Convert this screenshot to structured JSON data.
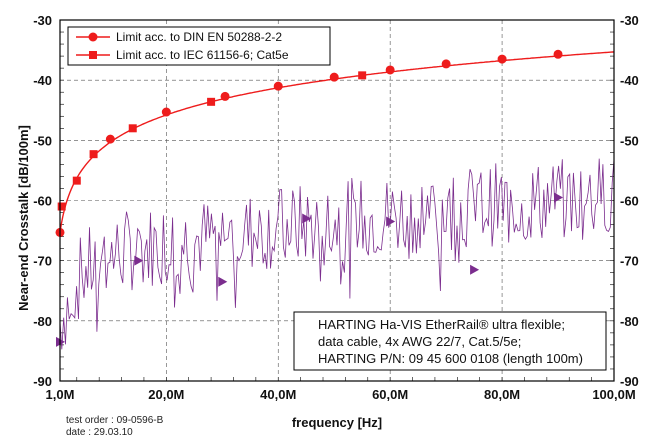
{
  "chart_data": {
    "type": "line",
    "xlabel": "frequency [Hz]",
    "ylabel": "Near-end Crosstalk [dB/100m]",
    "xlim": [
      1,
      100
    ],
    "ylim": [
      -90,
      -30
    ],
    "grid": true,
    "legend_position": "top-left",
    "x_ticks": [
      1,
      20,
      40,
      60,
      80,
      100
    ],
    "x_tick_labels": [
      "1,0M",
      "20,0M",
      "40,0M",
      "60,0M",
      "80,0M",
      "100,0M"
    ],
    "y_ticks": [
      -90,
      -80,
      -70,
      -60,
      -50,
      -40,
      -30
    ],
    "y_tick_labels": [
      "-90",
      "-80",
      "-70",
      "-60",
      "-50",
      "-40",
      "-30"
    ],
    "series": [
      {
        "name": "Limit acc. to DIN EN 50288-2-2",
        "color": "#ee1c1c",
        "marker": "circle",
        "x": [
          1,
          10,
          20,
          30.5,
          40,
          50,
          60,
          70,
          80,
          90
        ],
        "y": [
          -65.3,
          -49.8,
          -45.3,
          -42.7,
          -41,
          -39.5,
          -38.3,
          -37.3,
          -36.5,
          -35.7
        ]
      },
      {
        "name": "Limit acc. to IEC 61156-6; Cat5e",
        "color": "#ee1c1c",
        "marker": "square",
        "x": [
          1.3,
          4,
          7,
          14,
          28,
          55
        ],
        "y": [
          -61,
          -56.7,
          -52.3,
          -48,
          -43.6,
          -39.2
        ]
      },
      {
        "name": "",
        "color": "#7b2d8e",
        "marker": "triangle",
        "x": [
          1,
          15,
          30,
          45,
          60,
          75,
          90
        ],
        "y": [
          -83.5,
          -70,
          -73.5,
          -63,
          -63.5,
          -71.5,
          -59.5
        ]
      }
    ],
    "annotation_lines": [
      "HARTING Ha-VIS EtherRail® ultra flexible;",
      "data cable, 4x AWG 22/7, Cat.5/5e;",
      "HARTING P/N: 09 45 600 0108 (length 100m)"
    ]
  },
  "footer": {
    "test_order": "test order : 09-0596-B",
    "date": "date : 29.03.10"
  },
  "colors": {
    "limit": "#ee1c1c",
    "measurement": "#7b2d8e",
    "grid": "#555555"
  }
}
